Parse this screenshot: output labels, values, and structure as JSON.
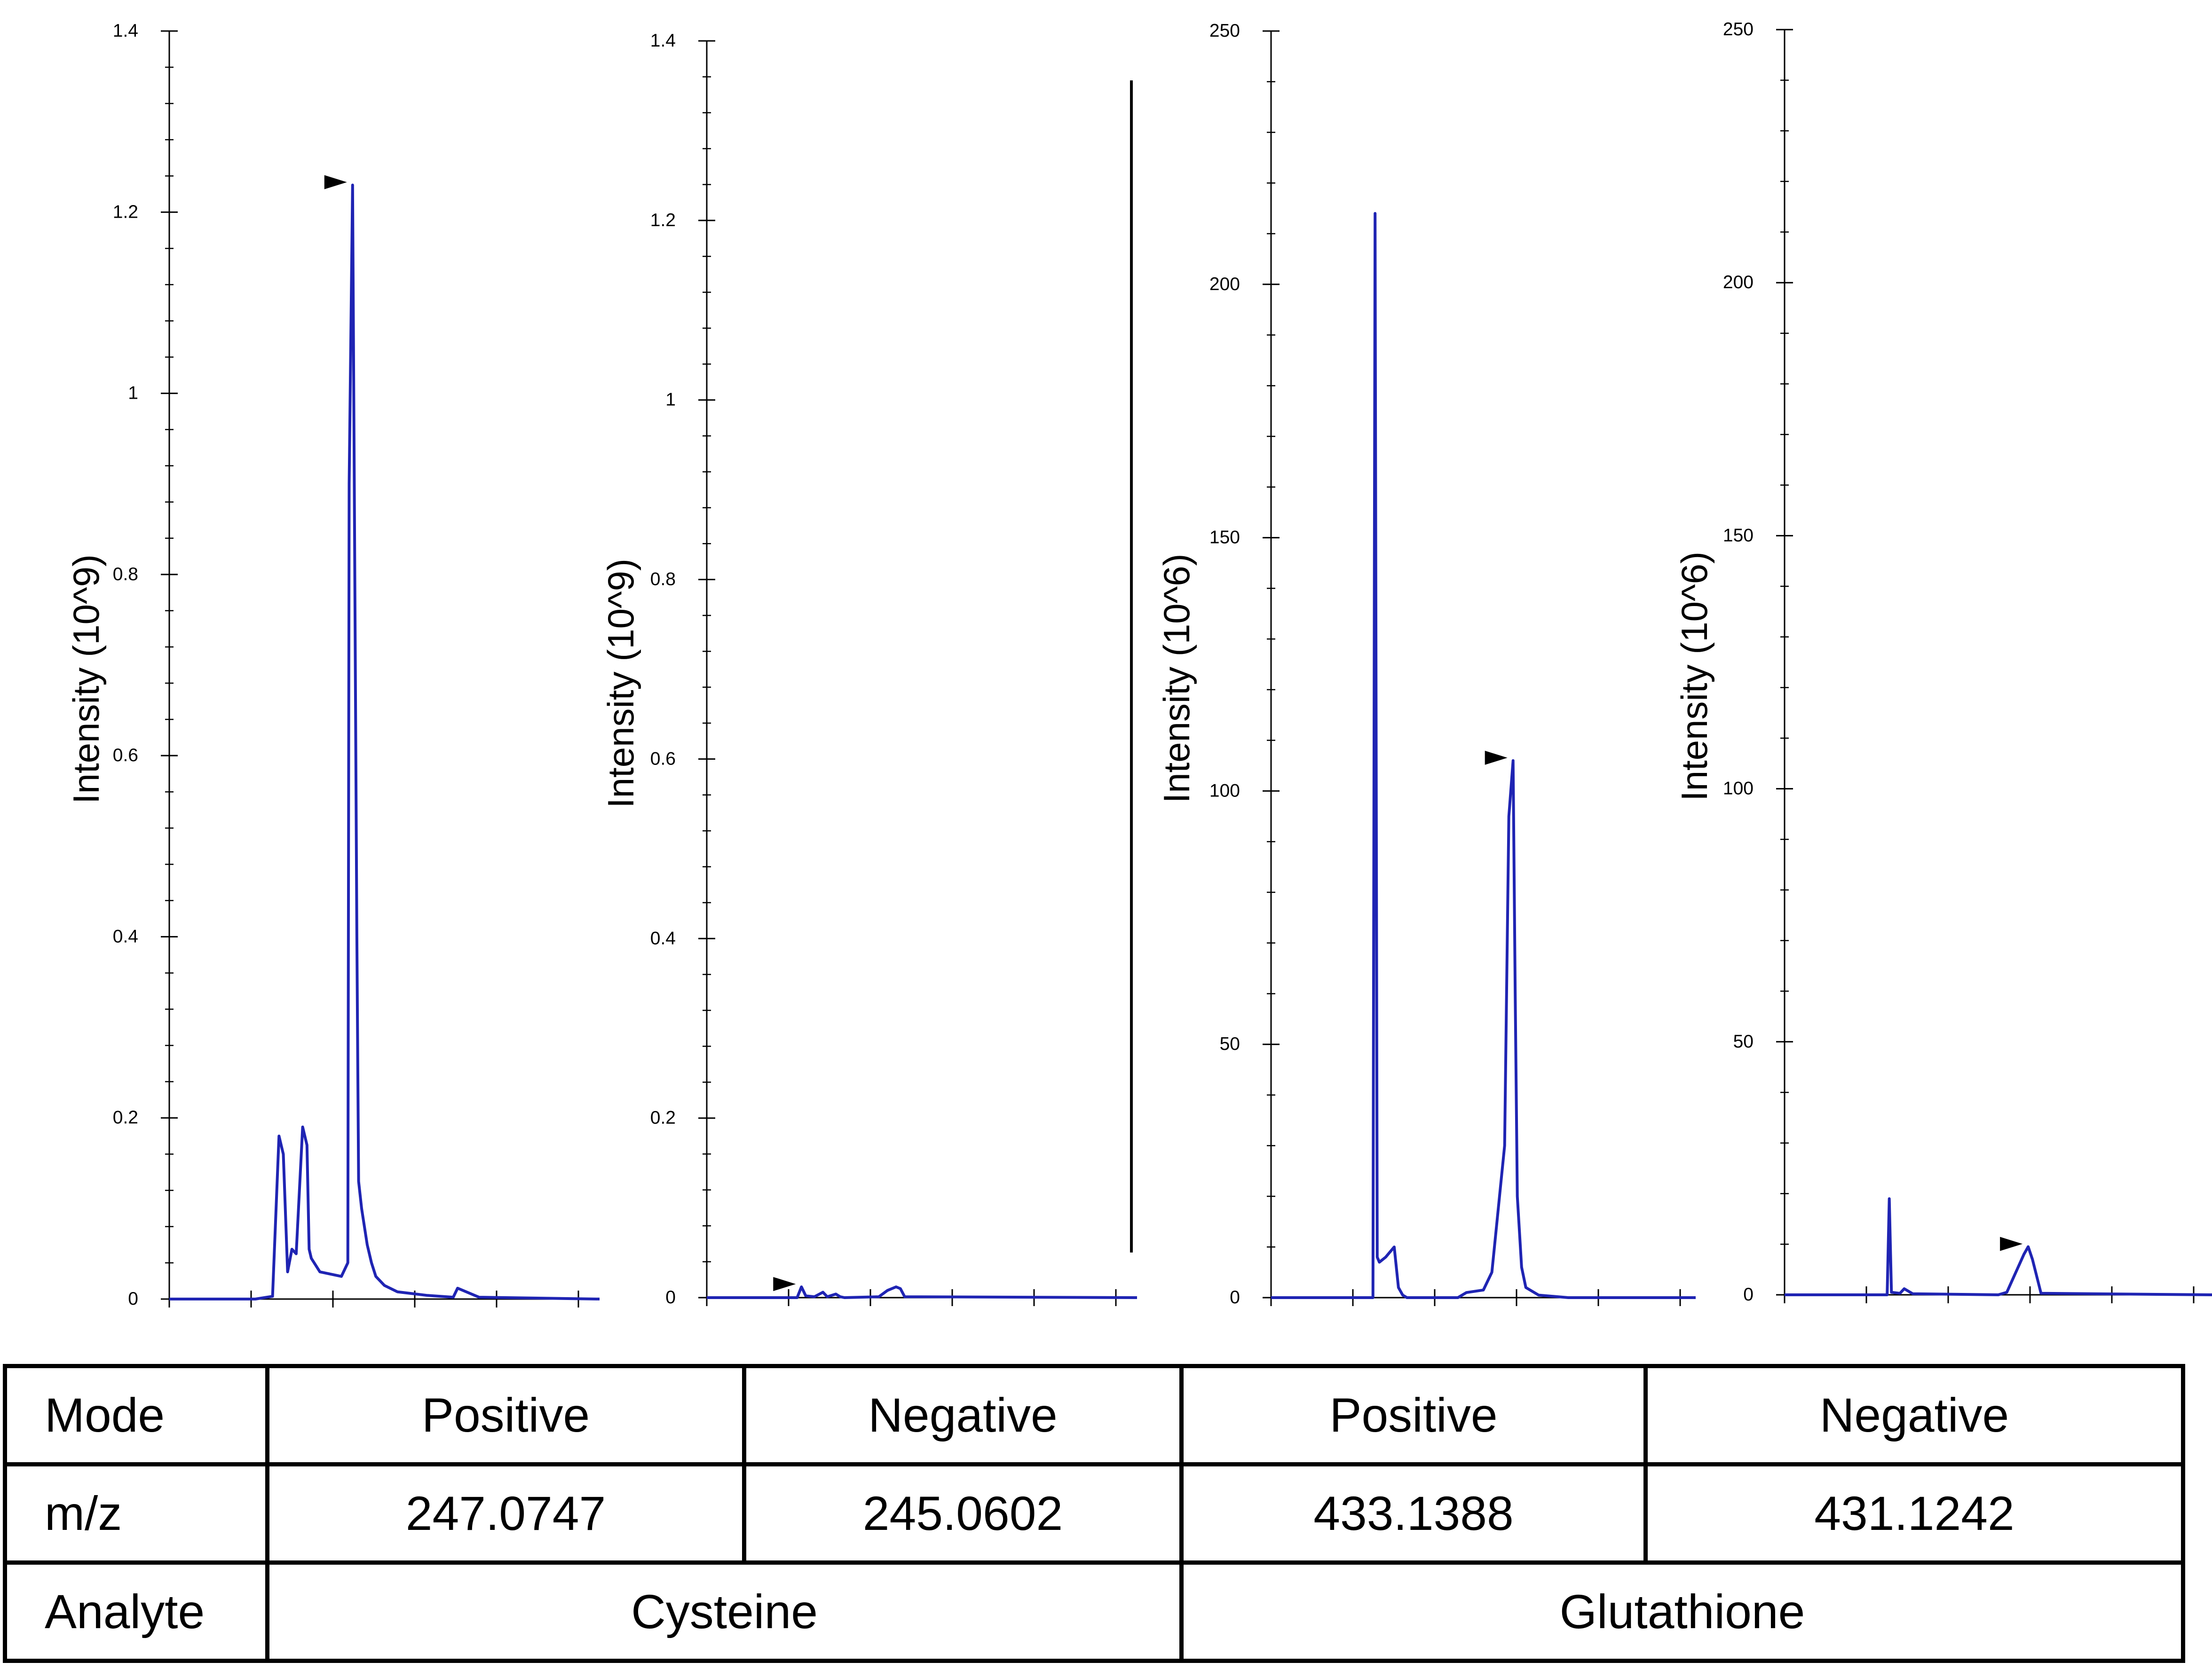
{
  "chart_data": [
    {
      "type": "line",
      "ylabel": "Intensity (10^9)",
      "ylim": [
        0,
        1.4
      ],
      "yticks": [
        "0",
        "0.2",
        "0.4",
        "0.6",
        "0.8",
        "1",
        "1.2",
        "1.4"
      ],
      "xlim": [
        0,
        1
      ],
      "series_color": "#1f24b3",
      "x": [
        0,
        0.2,
        0.24,
        0.255,
        0.265,
        0.275,
        0.285,
        0.295,
        0.31,
        0.32,
        0.325,
        0.33,
        0.35,
        0.4,
        0.415,
        0.418,
        0.426,
        0.436,
        0.44,
        0.447,
        0.46,
        0.47,
        0.48,
        0.5,
        0.53,
        0.6,
        0.66,
        0.67,
        0.72,
        1
      ],
      "y": [
        0,
        0,
        0.003,
        0.18,
        0.16,
        0.03,
        0.055,
        0.05,
        0.19,
        0.17,
        0.055,
        0.045,
        0.03,
        0.025,
        0.04,
        0.9,
        1.23,
        0.4,
        0.13,
        0.1,
        0.06,
        0.04,
        0.025,
        0.015,
        0.008,
        0.004,
        0.002,
        0.012,
        0.002,
        0
      ],
      "marker_y": 1.23
    },
    {
      "type": "line",
      "ylabel": "Intensity (10^9)",
      "ylim": [
        0,
        1.4
      ],
      "yticks": [
        "0",
        "0.2",
        "0.4",
        "0.6",
        "0.8",
        "1",
        "1.2",
        "1.4"
      ],
      "xlim": [
        0,
        1
      ],
      "series_color": "#1f24b3",
      "x": [
        0,
        0.21,
        0.22,
        0.23,
        0.25,
        0.27,
        0.28,
        0.3,
        0.31,
        0.32,
        0.4,
        0.42,
        0.44,
        0.45,
        0.46,
        1
      ],
      "y": [
        0,
        0,
        0.012,
        0.002,
        0.001,
        0.006,
        0.001,
        0.004,
        0.001,
        0,
        0.001,
        0.008,
        0.012,
        0.01,
        0.001,
        0
      ],
      "marker_y": 0.012
    },
    {
      "type": "line",
      "ylabel": "Intensity (10^6)",
      "ylim": [
        0,
        250
      ],
      "yticks": [
        "0",
        "50",
        "100",
        "150",
        "200",
        "250"
      ],
      "xlim": [
        0,
        1
      ],
      "series_color": "#1f24b3",
      "x": [
        0,
        0.24,
        0.245,
        0.25,
        0.255,
        0.27,
        0.29,
        0.3,
        0.31,
        0.32,
        0.44,
        0.46,
        0.5,
        0.52,
        0.55,
        0.56,
        0.57,
        0.575,
        0.58,
        0.59,
        0.6,
        0.63,
        0.7,
        1
      ],
      "y": [
        0,
        0,
        214,
        8,
        7,
        8,
        10,
        2,
        0.5,
        0,
        0,
        1,
        1.5,
        5,
        30,
        95,
        106,
        60,
        20,
        6,
        2,
        0.5,
        0,
        0
      ],
      "marker_y": 106
    },
    {
      "type": "line",
      "ylabel": "Intensity (10^6)",
      "ylim": [
        0,
        250
      ],
      "yticks": [
        "0",
        "50",
        "100",
        "150",
        "200",
        "250"
      ],
      "xlim": [
        0,
        1
      ],
      "series_color": "#1f24b3",
      "x": [
        0,
        0.24,
        0.245,
        0.25,
        0.27,
        0.28,
        0.3,
        0.5,
        0.52,
        0.56,
        0.57,
        0.58,
        0.6,
        1
      ],
      "y": [
        0,
        0,
        19,
        0.5,
        0.3,
        1.2,
        0.2,
        0,
        0.5,
        8,
        9.5,
        7,
        0.3,
        0
      ],
      "marker_y": 9.5
    }
  ],
  "table": {
    "rows": [
      {
        "head": "Mode",
        "cells": [
          "Positive",
          "Negative",
          "Positive",
          "Negative"
        ]
      },
      {
        "head": "m/z",
        "cells": [
          "247.0747",
          "245.0602",
          "433.1388",
          "431.1242"
        ]
      }
    ],
    "analyte_head": "Analyte",
    "analytes": [
      "Cysteine",
      "Glutathione"
    ]
  }
}
